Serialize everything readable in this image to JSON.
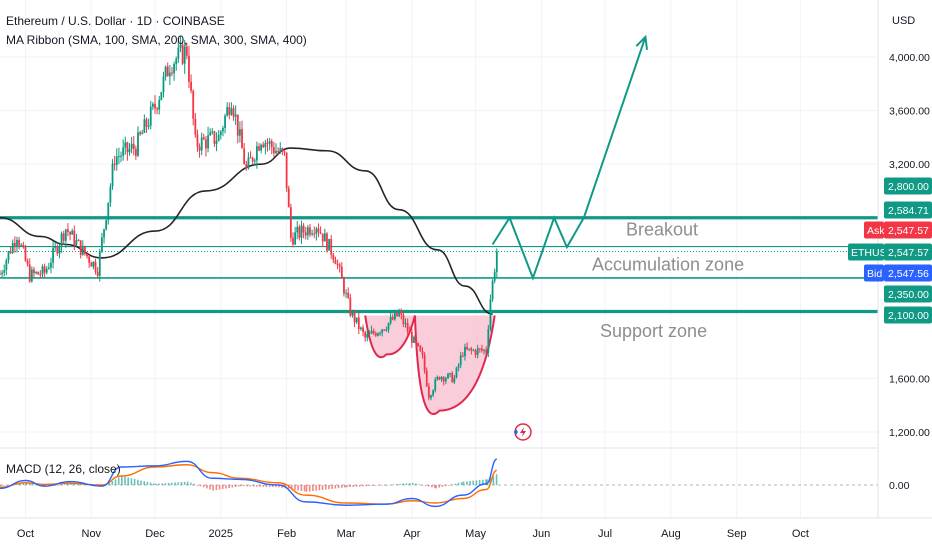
{
  "header": {
    "title": "Ethereum / U.S. Dollar · 1D · COINBASE",
    "indicator": "MA Ribbon (SMA, 100, SMA, 200, SMA, 300, SMA, 400)"
  },
  "currency": "USD",
  "macd_label": "MACD (12, 26, close)",
  "colors": {
    "up": "#089981",
    "down": "#f23645",
    "teal": "#109a86",
    "ma": "#262626",
    "cup_fill": "#f8c4d2",
    "cup_line": "#e0284f",
    "macd_line": "#2962ff",
    "signal_line": "#ff6d00",
    "zone_text": "#8e8e8e"
  },
  "chart_data": {
    "type": "candlestick",
    "symbol": "ETHUSD",
    "timeframe": "1D",
    "exchange": "COINBASE",
    "y_axis": {
      "ticks": [
        {
          "value": 4000,
          "label": "4,000.00"
        },
        {
          "value": 3600,
          "label": "3,600.00"
        },
        {
          "value": 3200,
          "label": "3,200.00"
        },
        {
          "value": 1600,
          "label": "1,600.00"
        },
        {
          "value": 1200,
          "label": "1,200.00"
        }
      ],
      "ylim": [
        1130,
        4320
      ]
    },
    "x_axis": {
      "labels": [
        "Oct",
        "Nov",
        "Dec",
        "2025",
        "Feb",
        "Mar",
        "Apr",
        "May",
        "Jun",
        "Jul",
        "Aug",
        "Sep",
        "Oct"
      ],
      "label_dates": [
        "2024-10-01",
        "2024-11-01",
        "2024-12-01",
        "2025-01-01",
        "2025-02-01",
        "2025-03-01",
        "2025-04-01",
        "2025-05-01",
        "2025-06-01",
        "2025-07-01",
        "2025-08-01",
        "2025-09-01",
        "2025-10-01"
      ],
      "range": [
        "2024-09-19",
        "2025-10-22"
      ]
    },
    "price_anchors": [
      {
        "date": "2024-09-19",
        "close": 2380
      },
      {
        "date": "2024-09-27",
        "close": 2680
      },
      {
        "date": "2024-10-03",
        "close": 2370
      },
      {
        "date": "2024-10-10",
        "close": 2390
      },
      {
        "date": "2024-10-20",
        "close": 2720
      },
      {
        "date": "2024-10-28",
        "close": 2550
      },
      {
        "date": "2024-11-04",
        "close": 2420
      },
      {
        "date": "2024-11-12",
        "close": 3250
      },
      {
        "date": "2024-11-22",
        "close": 3330
      },
      {
        "date": "2024-12-01",
        "close": 3630
      },
      {
        "date": "2024-12-08",
        "close": 3950
      },
      {
        "date": "2024-12-16",
        "close": 4050
      },
      {
        "date": "2024-12-20",
        "close": 3350
      },
      {
        "date": "2024-12-31",
        "close": 3400
      },
      {
        "date": "2025-01-06",
        "close": 3700
      },
      {
        "date": "2025-01-13",
        "close": 3150
      },
      {
        "date": "2025-01-20",
        "close": 3400
      },
      {
        "date": "2025-01-31",
        "close": 3250
      },
      {
        "date": "2025-02-03",
        "close": 2650
      },
      {
        "date": "2025-02-15",
        "close": 2750
      },
      {
        "date": "2025-02-24",
        "close": 2500
      },
      {
        "date": "2025-03-03",
        "close": 2100
      },
      {
        "date": "2025-03-10",
        "close": 1900
      },
      {
        "date": "2025-03-20",
        "close": 2000
      },
      {
        "date": "2025-03-26",
        "close": 2080
      },
      {
        "date": "2025-04-06",
        "close": 1750
      },
      {
        "date": "2025-04-09",
        "close": 1480
      },
      {
        "date": "2025-04-14",
        "close": 1620
      },
      {
        "date": "2025-04-21",
        "close": 1600
      },
      {
        "date": "2025-04-25",
        "close": 1800
      },
      {
        "date": "2025-05-06",
        "close": 1810
      },
      {
        "date": "2025-05-08",
        "close": 2200
      },
      {
        "date": "2025-05-11",
        "close": 2547.57
      }
    ],
    "ma_line": [
      {
        "date": "2024-09-19",
        "value": 2800
      },
      {
        "date": "2024-10-08",
        "value": 2660
      },
      {
        "date": "2024-10-20",
        "value": 2600
      },
      {
        "date": "2024-11-06",
        "value": 2500
      },
      {
        "date": "2024-12-01",
        "value": 2700
      },
      {
        "date": "2024-12-25",
        "value": 3000
      },
      {
        "date": "2025-01-20",
        "value": 3200
      },
      {
        "date": "2025-02-03",
        "value": 3320
      },
      {
        "date": "2025-02-20",
        "value": 3300
      },
      {
        "date": "2025-03-10",
        "value": 3150
      },
      {
        "date": "2025-03-26",
        "value": 2860
      },
      {
        "date": "2025-04-13",
        "value": 2560
      },
      {
        "date": "2025-04-26",
        "value": 2290
      },
      {
        "date": "2025-05-09",
        "value": 2080
      }
    ],
    "horizontal_levels": [
      2800,
      2584.71,
      2547.57,
      2350,
      2100
    ],
    "zones": [
      {
        "label": "Breakout",
        "price": 2720
      },
      {
        "label": "Accumulation zone",
        "price": 2460
      },
      {
        "label": "Support zone",
        "price": 1960
      }
    ],
    "projection_path": [
      {
        "date": "2025-05-09",
        "value": 2600
      },
      {
        "date": "2025-05-17",
        "value": 2800
      },
      {
        "date": "2025-05-28",
        "value": 2350
      },
      {
        "date": "2025-06-07",
        "value": 2800
      },
      {
        "date": "2025-06-13",
        "value": 2580
      },
      {
        "date": "2025-06-21",
        "value": 2800
      },
      {
        "date": "2025-07-20",
        "value": 4150
      }
    ],
    "cup_pattern": {
      "left_rim": {
        "date": "2025-03-10",
        "value": 2070
      },
      "right_rim": {
        "date": "2025-05-10",
        "value": 2070
      },
      "bottoms": [
        {
          "date": "2025-03-20",
          "value": 1780
        },
        {
          "date": "2025-04-14",
          "value": 1360
        }
      ]
    },
    "price_labels": [
      {
        "label": "",
        "value": "2,800.00",
        "price": 2800
      },
      {
        "label": "",
        "value": "2,584.71",
        "price": 2584.71
      },
      {
        "label": "Ask",
        "value": "2,547.57",
        "price": 2547.57
      },
      {
        "label": "ETHUSD",
        "value": "2,547.57",
        "price": 2547.57
      },
      {
        "label": "Bid",
        "value": "2,547.56",
        "price": 2547.56
      },
      {
        "label": "",
        "value": "2,350.00",
        "price": 2350
      },
      {
        "label": "",
        "value": "2,100.00",
        "price": 2100
      }
    ],
    "macd": {
      "zero_label": "0.00",
      "points": [
        {
          "date": "2024-09-19",
          "macd": -30,
          "signal": -20
        },
        {
          "date": "2024-10-01",
          "macd": 40,
          "signal": 20
        },
        {
          "date": "2024-10-10",
          "macd": -10,
          "signal": 5
        },
        {
          "date": "2024-10-22",
          "macd": 30,
          "signal": 15
        },
        {
          "date": "2024-11-06",
          "macd": -10,
          "signal": 0
        },
        {
          "date": "2024-11-15",
          "macd": 160,
          "signal": 80
        },
        {
          "date": "2024-12-01",
          "macd": 170,
          "signal": 160
        },
        {
          "date": "2024-12-16",
          "macd": 210,
          "signal": 180
        },
        {
          "date": "2024-12-28",
          "macd": 60,
          "signal": 110
        },
        {
          "date": "2025-01-10",
          "macd": 50,
          "signal": 60
        },
        {
          "date": "2025-01-28",
          "macd": 0,
          "signal": 20
        },
        {
          "date": "2025-02-10",
          "macd": -150,
          "signal": -90
        },
        {
          "date": "2025-03-01",
          "macd": -180,
          "signal": -160
        },
        {
          "date": "2025-03-20",
          "macd": -170,
          "signal": -170
        },
        {
          "date": "2025-04-01",
          "macd": -120,
          "signal": -140
        },
        {
          "date": "2025-04-12",
          "macd": -190,
          "signal": -160
        },
        {
          "date": "2025-04-25",
          "macd": -90,
          "signal": -120
        },
        {
          "date": "2025-05-06",
          "macd": 10,
          "signal": -40
        },
        {
          "date": "2025-05-11",
          "macd": 230,
          "signal": 130
        }
      ]
    }
  }
}
